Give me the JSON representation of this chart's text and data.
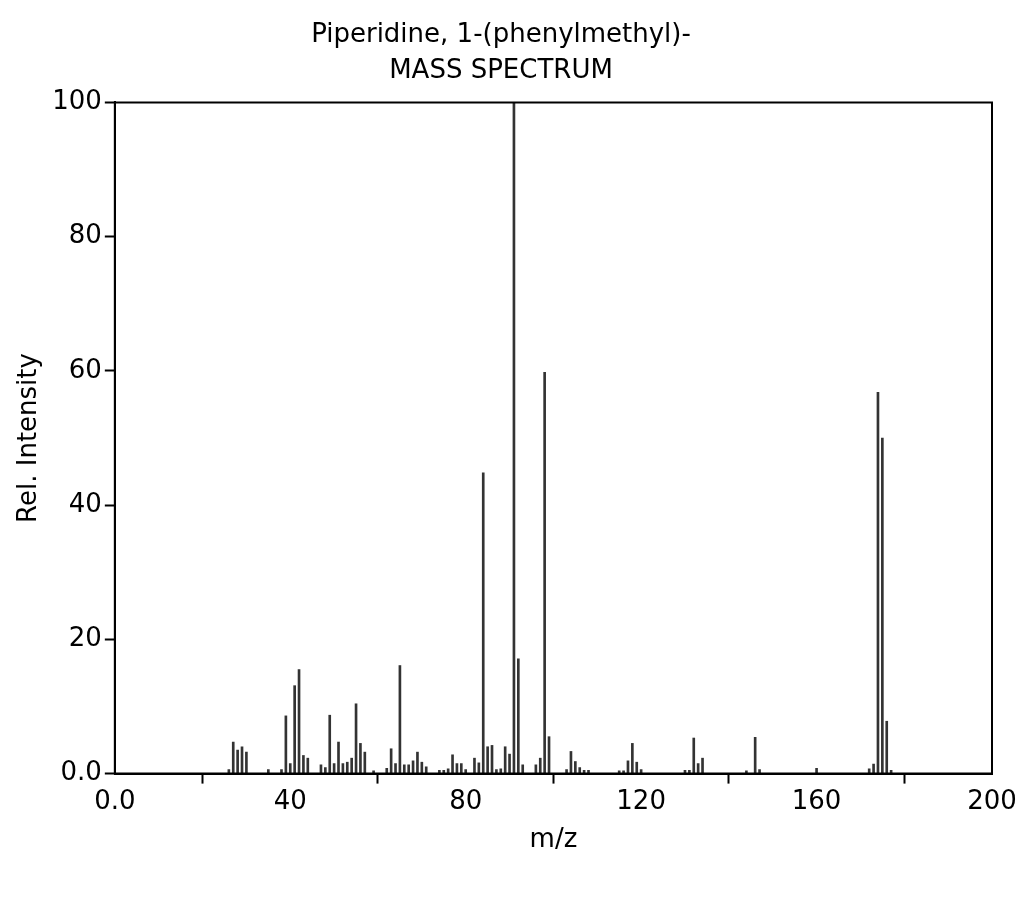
{
  "chart_data": {
    "type": "bar",
    "title": "Piperidine, 1-(phenylmethyl)-",
    "subtitle": "MASS SPECTRUM",
    "xlabel": "m/z",
    "ylabel": "Rel. Intensity",
    "x": [
      26,
      27,
      28,
      29,
      30,
      35,
      38,
      39,
      40,
      41,
      42,
      43,
      44,
      47,
      48,
      49,
      50,
      51,
      52,
      53,
      54,
      55,
      56,
      57,
      59,
      62,
      63,
      64,
      65,
      66,
      67,
      68,
      69,
      70,
      71,
      74,
      75,
      76,
      77,
      78,
      79,
      80,
      81,
      82,
      83,
      84,
      85,
      86,
      87,
      88,
      89,
      90,
      91,
      92,
      93,
      96,
      97,
      98,
      99,
      103,
      104,
      105,
      106,
      107,
      108,
      115,
      116,
      117,
      118,
      119,
      120,
      130,
      131,
      132,
      133,
      134,
      144,
      146,
      147,
      160,
      172,
      173,
      174,
      175,
      176,
      177
    ],
    "values": [
      0.6,
      4.7,
      3.5,
      4.0,
      3.2,
      0.6,
      0.6,
      8.6,
      1.5,
      13.1,
      15.5,
      2.7,
      2.3,
      1.3,
      0.9,
      8.7,
      1.5,
      4.7,
      1.5,
      1.7,
      2.3,
      10.4,
      4.5,
      3.2,
      0.4,
      0.8,
      3.7,
      1.5,
      16.1,
      1.3,
      1.3,
      1.9,
      3.2,
      1.7,
      1.0,
      0.5,
      0.5,
      0.7,
      2.8,
      1.5,
      1.5,
      0.6,
      null,
      2.3,
      1.6,
      44.8,
      4.0,
      4.2,
      0.6,
      0.7,
      4.0,
      2.9,
      100,
      17.1,
      1.3,
      1.3,
      2.3,
      59.8,
      5.5,
      0.6,
      3.3,
      1.8,
      0.9,
      0.5,
      0.5,
      0.4,
      0.4,
      1.9,
      4.5,
      1.7,
      0.6,
      0.5,
      0.5,
      5.3,
      1.5,
      2.3,
      0.4,
      5.4,
      0.6,
      0.8,
      0.7,
      1.4,
      56.8,
      50,
      7.8,
      0.5
    ],
    "color": "#333333",
    "xlim": [
      0,
      200
    ],
    "xticks": [
      {
        "value": 0,
        "label": "0.0"
      },
      40,
      80,
      120,
      160,
      200
    ],
    "ylim": [
      0,
      100
    ],
    "yticks": [
      {
        "value": 0,
        "label": "0.0"
      },
      20,
      40,
      60,
      80,
      100
    ],
    "grid": false,
    "legend": false
  }
}
